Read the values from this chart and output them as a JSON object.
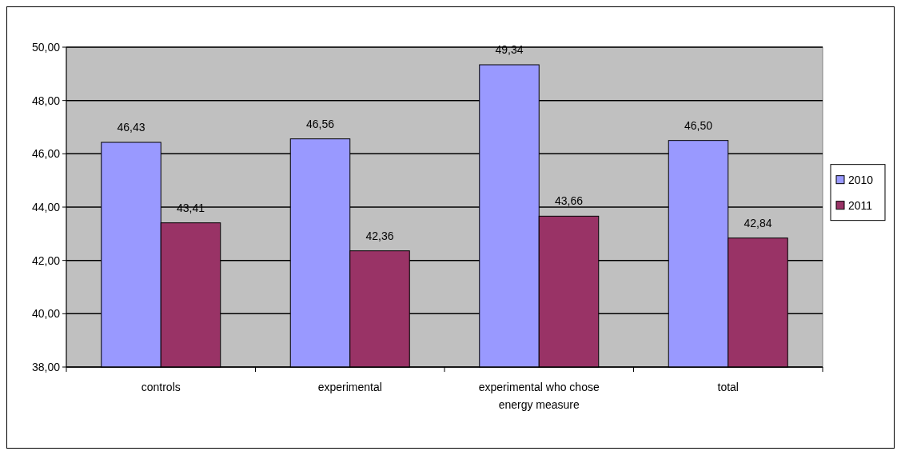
{
  "chart_data": {
    "type": "bar",
    "categories": [
      "controls",
      "experimental",
      "experimental who chose energy measure",
      "total"
    ],
    "series": [
      {
        "name": "2010",
        "color": "#9999ff",
        "values": [
          46.43,
          46.56,
          49.34,
          46.5
        ],
        "value_labels": [
          "46,43",
          "46,56",
          "49,34",
          "46,50"
        ]
      },
      {
        "name": "2011",
        "color": "#993366",
        "values": [
          43.41,
          42.36,
          43.66,
          42.84
        ],
        "value_labels": [
          "43,41",
          "42,36",
          "43,66",
          "42,84"
        ]
      }
    ],
    "ylim": [
      38,
      50
    ],
    "yticks": [
      {
        "value": 38,
        "label": "38,00"
      },
      {
        "value": 40,
        "label": "40,00"
      },
      {
        "value": 42,
        "label": "42,00"
      },
      {
        "value": 44,
        "label": "44,00"
      },
      {
        "value": 46,
        "label": "46,00"
      },
      {
        "value": 48,
        "label": "48,00"
      },
      {
        "value": 50,
        "label": "50,00"
      }
    ],
    "grid": "y",
    "legend": "right"
  }
}
